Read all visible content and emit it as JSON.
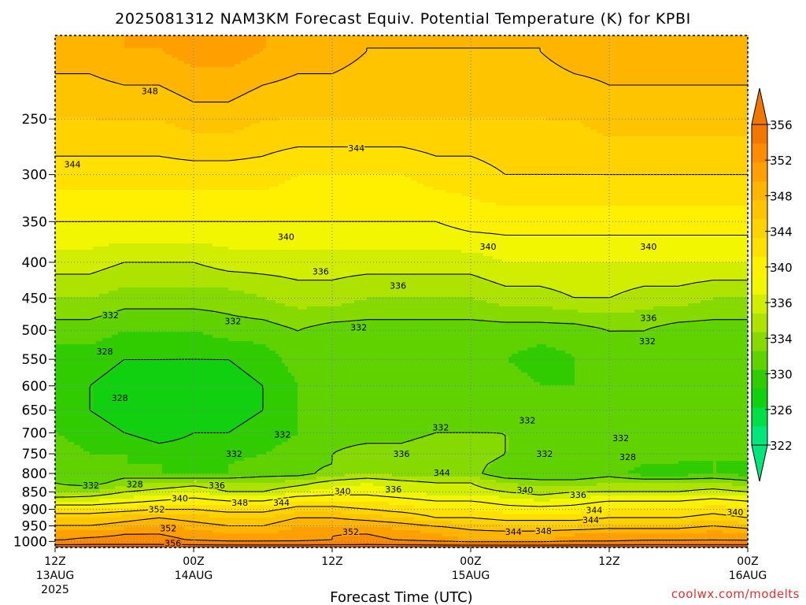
{
  "chart_data": {
    "type": "heatmap",
    "title": "2025081312 NAM3KM Forecast Equiv. Potential Temperature (K) for KPBI",
    "xlabel": "Forecast Time (UTC)",
    "ylabel": "",
    "x_ticks": [
      {
        "label": "12Z",
        "sub": "13AUG",
        "sub2": "2025",
        "hour": 0
      },
      {
        "label": "00Z",
        "sub": "14AUG",
        "sub2": "",
        "hour": 12
      },
      {
        "label": "12Z",
        "sub": "",
        "sub2": "",
        "hour": 24
      },
      {
        "label": "00Z",
        "sub": "15AUG",
        "sub2": "",
        "hour": 36
      },
      {
        "label": "12Z",
        "sub": "",
        "sub2": "",
        "hour": 48
      },
      {
        "label": "00Z",
        "sub": "16AUG",
        "sub2": "",
        "hour": 60
      }
    ],
    "xlim": [
      0,
      60
    ],
    "y_ticks": [
      250,
      300,
      350,
      400,
      450,
      500,
      550,
      600,
      650,
      700,
      750,
      800,
      850,
      900,
      950,
      1000
    ],
    "ylim": [
      1020,
      190
    ],
    "colorbar": {
      "levels": [
        322,
        324,
        326,
        328,
        330,
        332,
        334,
        336,
        338,
        340,
        342,
        344,
        346,
        348,
        350,
        352,
        354,
        356
      ],
      "tick_labels": [
        "322",
        "326",
        "330",
        "334",
        "336",
        "340",
        "344",
        "348",
        "352",
        "356"
      ],
      "colors": [
        "#00e67a",
        "#00e046",
        "#10d010",
        "#30cc00",
        "#60d200",
        "#86da00",
        "#aee200",
        "#d2ee00",
        "#f2f600",
        "#fff000",
        "#ffe000",
        "#ffd200",
        "#ffc400",
        "#ffb400",
        "#ffa000",
        "#ff8c00",
        "#f07800",
        "#a0522d"
      ]
    },
    "field": {
      "hours": [
        0,
        3,
        6,
        9,
        12,
        15,
        18,
        21,
        24,
        27,
        30,
        33,
        36,
        39,
        42,
        45,
        48,
        51,
        54,
        57,
        60
      ],
      "levels_hpa": [
        1010,
        1000,
        975,
        950,
        925,
        900,
        875,
        850,
        825,
        800,
        775,
        750,
        700,
        650,
        600,
        550,
        500,
        450,
        400,
        350,
        300,
        250,
        200
      ],
      "values": [
        [
          357,
          357,
          357,
          357,
          357,
          357,
          357,
          357,
          357,
          357,
          357,
          357,
          357,
          357,
          357,
          357,
          357,
          357,
          357,
          357,
          357
        ],
        [
          352,
          353,
          353,
          353,
          352,
          351,
          351,
          351,
          352,
          353,
          352,
          351,
          350,
          350,
          350,
          351,
          351,
          352,
          352,
          352,
          352
        ],
        [
          351,
          351,
          352,
          352,
          351,
          350,
          350,
          351,
          352,
          352,
          351,
          350,
          349,
          349,
          349,
          350,
          350,
          350,
          350,
          351,
          350
        ],
        [
          348,
          348,
          349,
          350,
          349,
          348,
          348,
          350,
          350,
          350,
          349,
          348,
          347,
          346,
          346,
          346,
          347,
          347,
          347,
          348,
          347
        ],
        [
          346,
          346,
          347,
          348,
          347,
          346,
          346,
          348,
          348,
          347,
          346,
          344,
          344,
          343,
          343,
          343,
          344,
          344,
          344,
          345,
          344
        ],
        [
          342,
          342,
          343,
          344,
          344,
          343,
          343,
          345,
          345,
          344,
          343,
          342,
          342,
          341,
          341,
          341,
          342,
          342,
          342,
          343,
          342
        ],
        [
          338,
          338,
          339,
          340,
          341,
          340,
          340,
          342,
          342,
          342,
          341,
          340,
          340,
          339,
          338,
          339,
          340,
          340,
          340,
          341,
          340
        ],
        [
          333,
          334,
          336,
          337,
          338,
          336,
          336,
          338,
          339,
          339,
          338,
          337,
          337,
          336,
          335,
          336,
          336,
          336,
          336,
          337,
          336
        ],
        [
          332,
          331,
          333,
          334,
          335,
          334,
          334,
          335,
          337,
          338,
          337,
          336,
          336,
          334,
          333,
          333,
          334,
          334,
          334,
          334,
          333
        ],
        [
          331,
          330,
          331,
          330,
          329,
          330,
          331,
          331,
          333,
          334,
          333,
          333,
          333,
          330,
          330,
          330,
          331,
          329,
          329,
          330,
          329
        ],
        [
          331,
          330,
          330,
          330,
          330,
          330,
          331,
          331,
          332,
          333,
          332,
          333,
          333,
          331,
          331,
          331,
          331,
          330,
          330,
          330,
          330
        ],
        [
          331,
          330,
          330,
          329,
          329,
          329,
          330,
          331,
          332,
          333,
          333,
          334,
          334,
          332,
          332,
          331,
          331,
          331,
          330,
          330,
          330
        ],
        [
          330,
          329,
          328,
          327,
          328,
          328,
          329,
          330,
          331,
          331,
          331,
          332,
          332,
          332,
          331,
          331,
          331,
          330,
          330,
          330,
          330
        ],
        [
          328,
          328,
          327,
          326,
          327,
          327,
          328,
          330,
          330,
          331,
          330,
          331,
          331,
          331,
          331,
          330,
          330,
          330,
          330,
          330,
          330
        ],
        [
          328,
          328,
          327,
          327,
          326,
          327,
          328,
          330,
          330,
          331,
          330,
          330,
          331,
          331,
          330,
          330,
          330,
          331,
          331,
          331,
          330
        ],
        [
          329,
          329,
          328,
          328,
          328,
          328,
          329,
          331,
          330,
          330,
          330,
          330,
          331,
          330,
          329,
          330,
          331,
          331,
          330,
          330,
          330
        ],
        [
          331,
          331,
          330,
          330,
          330,
          331,
          331,
          332,
          331,
          331,
          331,
          331,
          331,
          331,
          331,
          331,
          332,
          332,
          331,
          331,
          331
        ],
        [
          334,
          334,
          333,
          333,
          333,
          333,
          334,
          335,
          335,
          334,
          334,
          334,
          334,
          335,
          335,
          336,
          336,
          335,
          335,
          334,
          334
        ],
        [
          337,
          337,
          336,
          336,
          336,
          337,
          337,
          337,
          337,
          337,
          337,
          337,
          337,
          338,
          338,
          338,
          338,
          338,
          338,
          338,
          338
        ],
        [
          340,
          340,
          340,
          340,
          340,
          340,
          340,
          340,
          340,
          340,
          340,
          340,
          341,
          341,
          341,
          341,
          341,
          341,
          341,
          341,
          341
        ],
        [
          343,
          343,
          343,
          343,
          343,
          343,
          343,
          342,
          342,
          342,
          342,
          343,
          343,
          344,
          344,
          344,
          344,
          344,
          344,
          344,
          344
        ],
        [
          346,
          346,
          346,
          346,
          347,
          347,
          346,
          346,
          346,
          346,
          346,
          346,
          346,
          346,
          346,
          346,
          347,
          347,
          347,
          347,
          347
        ],
        [
          349,
          349,
          350,
          350,
          351,
          351,
          350,
          349,
          349,
          348,
          348,
          348,
          348,
          348,
          348,
          349,
          349,
          349,
          349,
          349,
          349
        ]
      ]
    },
    "contour_levels": [
      328,
      332,
      336,
      340,
      344,
      348,
      352,
      356
    ],
    "contour_labels": [
      {
        "text": "348",
        "hour": 8.2,
        "hpa": 228
      },
      {
        "text": "344",
        "hour": 1.5,
        "hpa": 290
      },
      {
        "text": "344",
        "hour": 26.1,
        "hpa": 275
      },
      {
        "text": "340",
        "hour": 20.0,
        "hpa": 368
      },
      {
        "text": "340",
        "hour": 37.5,
        "hpa": 380
      },
      {
        "text": "340",
        "hour": 51.4,
        "hpa": 380
      },
      {
        "text": "336",
        "hour": 23.0,
        "hpa": 412
      },
      {
        "text": "336",
        "hour": 29.7,
        "hpa": 432
      },
      {
        "text": "336",
        "hour": 51.4,
        "hpa": 480
      },
      {
        "text": "332",
        "hour": 4.8,
        "hpa": 476
      },
      {
        "text": "332",
        "hour": 15.4,
        "hpa": 485
      },
      {
        "text": "332",
        "hour": 26.3,
        "hpa": 495
      },
      {
        "text": "332",
        "hour": 51.3,
        "hpa": 518
      },
      {
        "text": "328",
        "hour": 4.3,
        "hpa": 536
      },
      {
        "text": "328",
        "hour": 5.6,
        "hpa": 624
      },
      {
        "text": "332",
        "hour": 19.7,
        "hpa": 704
      },
      {
        "text": "332",
        "hour": 33.4,
        "hpa": 688
      },
      {
        "text": "332",
        "hour": 40.9,
        "hpa": 672
      },
      {
        "text": "332",
        "hour": 49.0,
        "hpa": 712
      },
      {
        "text": "328",
        "hour": 49.6,
        "hpa": 758
      },
      {
        "text": "332",
        "hour": 15.5,
        "hpa": 750
      },
      {
        "text": "336",
        "hour": 30.0,
        "hpa": 750
      },
      {
        "text": "332",
        "hour": 42.4,
        "hpa": 750
      },
      {
        "text": "332",
        "hour": 3.1,
        "hpa": 832
      },
      {
        "text": "328",
        "hour": 6.9,
        "hpa": 828
      },
      {
        "text": "336",
        "hour": 14.0,
        "hpa": 832
      },
      {
        "text": "344",
        "hour": 33.5,
        "hpa": 798
      },
      {
        "text": "340",
        "hour": 24.9,
        "hpa": 848
      },
      {
        "text": "336",
        "hour": 29.3,
        "hpa": 842
      },
      {
        "text": "340",
        "hour": 40.7,
        "hpa": 845
      },
      {
        "text": "336",
        "hour": 45.3,
        "hpa": 858
      },
      {
        "text": "340",
        "hour": 10.8,
        "hpa": 868
      },
      {
        "text": "348",
        "hour": 16.0,
        "hpa": 880
      },
      {
        "text": "344",
        "hour": 19.6,
        "hpa": 880
      },
      {
        "text": "352",
        "hour": 8.8,
        "hpa": 900
      },
      {
        "text": "344",
        "hour": 46.7,
        "hpa": 902
      },
      {
        "text": "344",
        "hour": 46.4,
        "hpa": 932
      },
      {
        "text": "340",
        "hour": 58.9,
        "hpa": 908
      },
      {
        "text": "352",
        "hour": 9.8,
        "hpa": 958
      },
      {
        "text": "352",
        "hour": 25.6,
        "hpa": 968
      },
      {
        "text": "344",
        "hour": 39.7,
        "hpa": 968
      },
      {
        "text": "348",
        "hour": 42.3,
        "hpa": 966
      },
      {
        "text": "356",
        "hour": 10.2,
        "hpa": 1005
      }
    ],
    "grid": true
  },
  "credit": "coolwx.com/modelts"
}
